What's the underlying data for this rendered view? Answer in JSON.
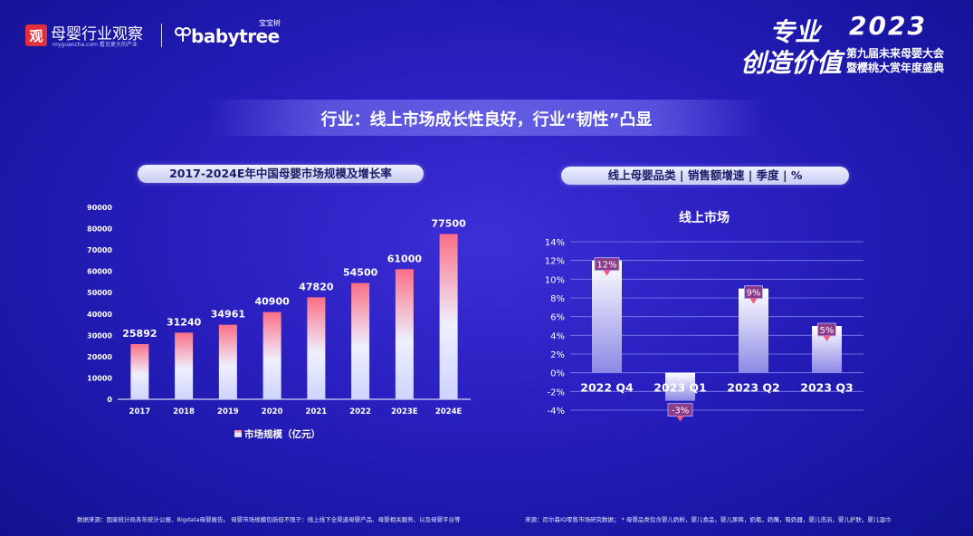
{
  "header": {
    "logo_mark": "观",
    "brand_name": "母婴行业观察",
    "brand_url": "myguancha.com",
    "brand_slogan": "看见更大的产业",
    "babytree_name": "babytree",
    "babytree_cn": "宝宝树",
    "event_word1": "专业",
    "event_word2": "创造价值",
    "event_year": "2023",
    "event_line1": "第九届未来母婴大会",
    "event_line2": "暨樱桃大赏年度盛典"
  },
  "headline": "行业：线上市场成长性良好，行业“韧性”凸显",
  "colors": {
    "bar_top": "#fb6f86",
    "bar_bottom": "#cfd3ff",
    "bar2_top": "#ffffff",
    "bar2_bottom": "#8c88e6",
    "label_box": "#8c3a8a",
    "label_pointer": "#f25a78"
  },
  "chart_data": [
    {
      "type": "bar",
      "title": "2017-2024E年中国母婴市场规模及增长率",
      "categories": [
        "2017",
        "2018",
        "2019",
        "2020",
        "2021",
        "2022",
        "2023E",
        "2024E"
      ],
      "series": [
        {
          "name": "市场规模（亿元）",
          "values": [
            25892,
            31240,
            34961,
            40900,
            47820,
            54500,
            61000,
            77500
          ]
        }
      ],
      "ylim": [
        0,
        90000
      ],
      "yticks": [
        "0",
        "10000",
        "20000",
        "30000",
        "40000",
        "50000",
        "60000",
        "70000",
        "80000",
        "90000"
      ],
      "grid": false,
      "legend": "bottom"
    },
    {
      "type": "bar",
      "header": "线上母婴品类 | 销售额增速 | 季度 | %",
      "title": "线上市场",
      "categories": [
        "2022 Q4",
        "2023 Q1",
        "2023 Q2",
        "2023 Q3"
      ],
      "values": [
        12,
        -3,
        9,
        5
      ],
      "labels": [
        "12%",
        "-3%",
        "9%",
        "5%"
      ],
      "ylim": [
        -4,
        14
      ],
      "yticks": [
        "-4%",
        "-2%",
        "0%",
        "2%",
        "4%",
        "6%",
        "8%",
        "10%",
        "12%",
        "14%"
      ],
      "grid": true
    }
  ],
  "footer": {
    "left_note": "数据来源：国家统计局各年统计公报、Bigdata母婴报告。 母婴市场规模包括但不限于：线上线下全渠道母婴产品、母婴相关服务、以及母婴平台等",
    "right_note": "来源：尼尔森IQ零售市场研究数据； * 母婴品类包含婴儿奶粉，婴儿食品，婴儿尿裤，奶瓶，奶嘴，吸奶器，婴儿洗浴，婴儿护肤，婴儿湿巾"
  }
}
